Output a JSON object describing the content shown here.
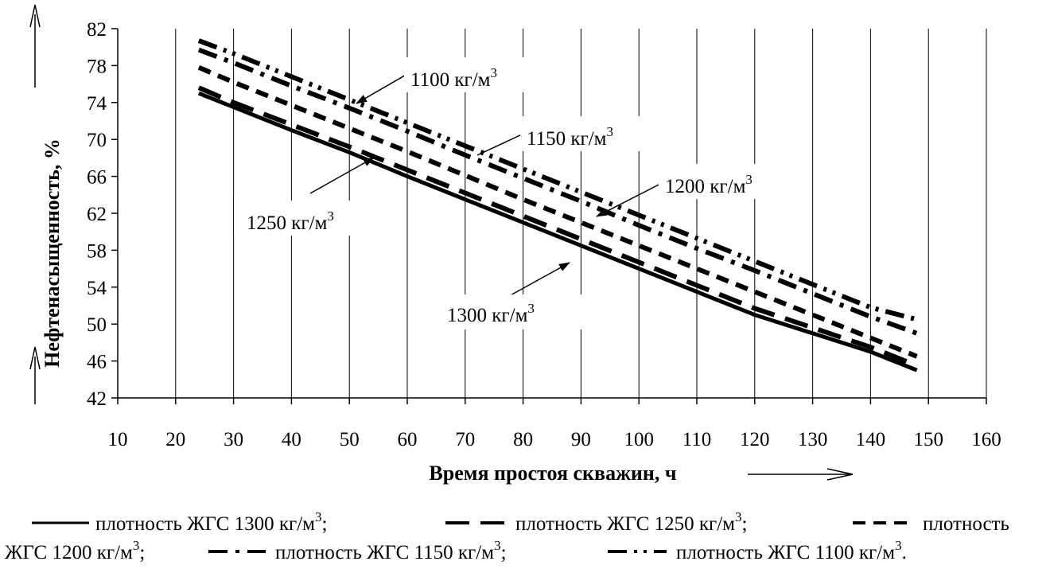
{
  "chart_data": {
    "type": "line",
    "xlabel": "Время простоя скважин, ч",
    "ylabel": "Нефтенасыщенность, %",
    "xlim": [
      10,
      160
    ],
    "ylim": [
      42,
      82
    ],
    "x_ticks": [
      10,
      20,
      30,
      40,
      50,
      60,
      70,
      80,
      90,
      100,
      110,
      120,
      130,
      140,
      150,
      160
    ],
    "y_ticks": [
      42,
      46,
      50,
      54,
      58,
      62,
      66,
      70,
      74,
      78,
      82
    ],
    "grid": "vertical",
    "series": [
      {
        "name": "плотность ЖГС 1300 кг/м3",
        "style": "solid",
        "x": [
          24,
          30,
          40,
          50,
          60,
          70,
          80,
          90,
          100,
          110,
          120,
          130,
          140,
          148
        ],
        "y": [
          75.0,
          73.5,
          71.0,
          68.6,
          66.0,
          63.5,
          61.0,
          58.5,
          56.0,
          53.5,
          51.0,
          49.0,
          47.0,
          45.0
        ]
      },
      {
        "name": "плотность ЖГС 1250 кг/м3",
        "style": "dashed",
        "x": [
          24,
          30,
          40,
          50,
          60,
          70,
          80,
          90,
          100,
          110,
          120,
          130,
          140,
          148
        ],
        "y": [
          75.6,
          74.0,
          71.6,
          69.2,
          66.7,
          64.2,
          61.7,
          59.2,
          56.7,
          54.2,
          51.7,
          49.6,
          47.5,
          45.5
        ]
      },
      {
        "name": "плотность ЖГС 1200 кг/м3",
        "style": "short-dashed",
        "x": [
          24,
          30,
          40,
          50,
          60,
          70,
          80,
          90,
          100,
          110,
          120,
          130,
          140,
          148
        ],
        "y": [
          77.8,
          76.2,
          73.7,
          71.2,
          68.7,
          66.1,
          63.5,
          61.0,
          58.5,
          56.0,
          53.5,
          51.0,
          48.5,
          46.5
        ]
      },
      {
        "name": "плотность ЖГС 1150 кг/м3",
        "style": "dash-dot",
        "x": [
          24,
          30,
          40,
          50,
          60,
          70,
          80,
          90,
          100,
          110,
          120,
          130,
          140,
          148
        ],
        "y": [
          79.7,
          78.3,
          75.8,
          73.4,
          70.9,
          68.3,
          65.8,
          63.3,
          60.7,
          58.2,
          55.8,
          53.3,
          50.8,
          49.0
        ]
      },
      {
        "name": "плотность ЖГС 1100 кг/м3",
        "style": "dash-dot-dot",
        "x": [
          24,
          30,
          40,
          50,
          60,
          70,
          80,
          90,
          100,
          110,
          120,
          130,
          140,
          148
        ],
        "y": [
          80.7,
          79.3,
          76.8,
          74.3,
          71.8,
          69.3,
          66.8,
          64.3,
          61.8,
          59.3,
          56.8,
          54.3,
          51.8,
          50.5
        ]
      }
    ],
    "annotations": [
      {
        "text": "1100 кг/м",
        "sup": "3"
      },
      {
        "text": "1150 кг/м",
        "sup": "3"
      },
      {
        "text": "1200 кг/м",
        "sup": "3"
      },
      {
        "text": "1250 кг/м",
        "sup": "3"
      },
      {
        "text": "1300 кг/м",
        "sup": "3"
      }
    ],
    "legend": {
      "placement": "below",
      "line1": [
        {
          "pre": "плотность ЖГС 1300 кг/м",
          "sup": "3",
          "post": ";"
        },
        {
          "pre": "плотность ЖГС 1250 кг/м",
          "sup": "3",
          "post": ";"
        },
        {
          "pre": "плотность",
          "sup": "",
          "post": ""
        }
      ],
      "line2": [
        {
          "pre": "ЖГС 1200 кг/м",
          "sup": "3",
          "post": ";"
        },
        {
          "pre": "плотность ЖГС 1150 кг/м",
          "sup": "3",
          "post": ";"
        },
        {
          "pre": "плотность ЖГС 1100 кг/м",
          "sup": "3",
          "post": "."
        }
      ]
    }
  }
}
